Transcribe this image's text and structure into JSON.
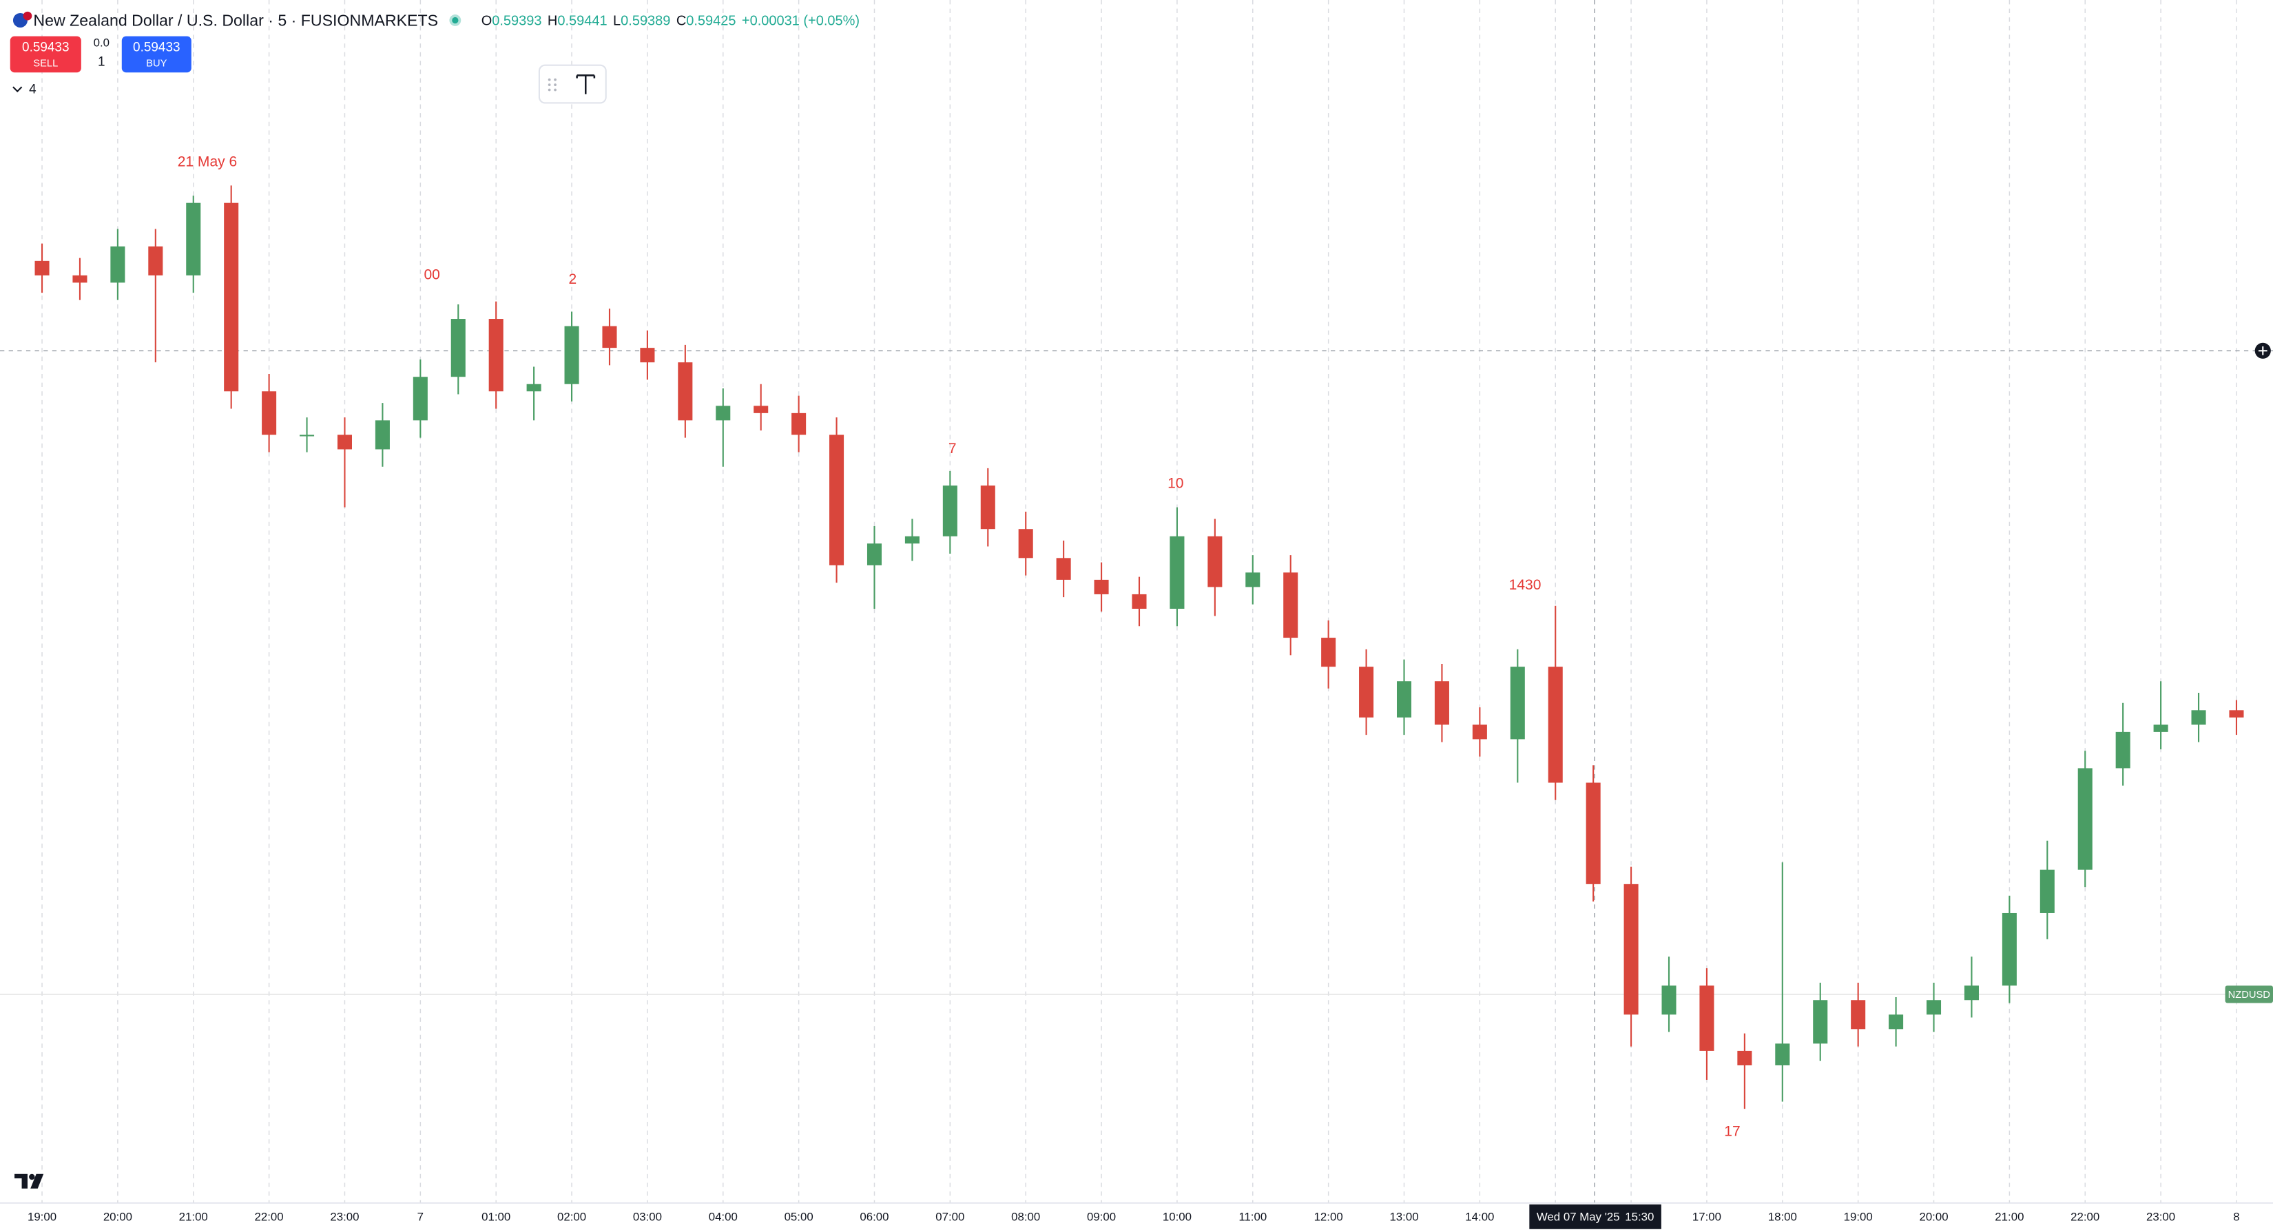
{
  "header": {
    "title": "New Zealand Dollar / U.S. Dollar · 5 · FUSIONMARKETS",
    "ohlc": [
      {
        "label": "O",
        "value": 0.59393
      },
      {
        "label": "H",
        "value": 0.59441
      },
      {
        "label": "L",
        "value": 0.59389
      },
      {
        "label": "C",
        "value": 0.59425
      }
    ],
    "change": "+0.00031 (+0.05%)",
    "sell_price": 0.59433,
    "sell_label": "SELL",
    "spread": "0.0",
    "quantity": 1,
    "buy_price": 0.59433,
    "buy_label": "BUY",
    "indicators_count": 4
  },
  "crosshair": {
    "date": "Wed 07 May '25",
    "time": "15:30"
  },
  "chart_data": {
    "type": "candlestick",
    "ylim": [
      0.5909,
      0.5992
    ],
    "xticks": [
      "19:00",
      "20:00",
      "21:00",
      "22:00",
      "23:00",
      "7",
      "01:00",
      "02:00",
      "03:00",
      "04:00",
      "05:00",
      "06:00",
      "07:00",
      "08:00",
      "09:00",
      "10:00",
      "11:00",
      "12:00",
      "13:00",
      "14:00",
      null,
      null,
      "17:00",
      "18:00",
      "19:00",
      "20:00",
      "21:00",
      "22:00",
      "23:00",
      "8"
    ],
    "grid": true,
    "annotations": [
      "21 May 6",
      "00",
      "2",
      "7",
      "10",
      "1430",
      "17"
    ],
    "annotation_color": "#e53935",
    "series": [
      {
        "name": "NZDUSD",
        "up_color": "#4a9d64",
        "down_color": "#d9463c",
        "open": [
          0.5974,
          0.5973,
          0.59725,
          0.5975,
          0.5973,
          0.5978,
          0.5965,
          0.5962,
          0.5962,
          0.5961,
          0.5963,
          0.5966,
          0.597,
          0.5965,
          0.59655,
          0.59695,
          0.5968,
          0.5967,
          0.5963,
          0.5964,
          0.59635,
          0.5962,
          0.5953,
          0.59545,
          0.5955,
          0.59585,
          0.59555,
          0.59535,
          0.5952,
          0.5951,
          0.595,
          0.5955,
          0.59515,
          0.59525,
          0.5948,
          0.5946,
          0.59425,
          0.5945,
          0.5942,
          0.5941,
          0.5946,
          0.5938,
          0.5931,
          0.5922,
          0.5924,
          0.59195,
          0.59185,
          0.592,
          0.5923,
          0.5921,
          0.5922,
          0.5923,
          0.5924,
          0.5929,
          0.5932,
          0.5939,
          0.59415,
          0.5942,
          0.5943
        ],
        "high": [
          0.59752,
          0.59742,
          0.59762,
          0.59762,
          0.59785,
          0.59792,
          0.59662,
          0.59632,
          0.59632,
          0.59642,
          0.59672,
          0.5971,
          0.59712,
          0.59667,
          0.59705,
          0.59707,
          0.59692,
          0.59682,
          0.59652,
          0.59655,
          0.59647,
          0.59632,
          0.59557,
          0.59562,
          0.59595,
          0.59597,
          0.59567,
          0.59547,
          0.59532,
          0.59522,
          0.5957,
          0.59562,
          0.59537,
          0.59537,
          0.59492,
          0.59472,
          0.59465,
          0.59462,
          0.59432,
          0.59472,
          0.59502,
          0.59392,
          0.59322,
          0.5926,
          0.59252,
          0.59207,
          0.59325,
          0.59242,
          0.59242,
          0.59232,
          0.59242,
          0.5926,
          0.59302,
          0.5934,
          0.59402,
          0.59435,
          0.5945,
          0.59442,
          0.59437
        ],
        "low": [
          0.59718,
          0.59713,
          0.59713,
          0.5967,
          0.59718,
          0.59638,
          0.59608,
          0.59608,
          0.5957,
          0.59598,
          0.59618,
          0.59648,
          0.59638,
          0.5963,
          0.59643,
          0.59668,
          0.59658,
          0.59618,
          0.59598,
          0.59623,
          0.59608,
          0.59518,
          0.595,
          0.59533,
          0.59538,
          0.59543,
          0.59523,
          0.59508,
          0.59498,
          0.59488,
          0.59488,
          0.59495,
          0.59503,
          0.59468,
          0.59445,
          0.59413,
          0.59413,
          0.59408,
          0.59398,
          0.5938,
          0.59368,
          0.59298,
          0.59198,
          0.59208,
          0.59175,
          0.59155,
          0.5916,
          0.59188,
          0.59198,
          0.59198,
          0.59208,
          0.59218,
          0.59228,
          0.59272,
          0.59308,
          0.59378,
          0.59403,
          0.59408,
          0.59413
        ],
        "close": [
          0.5973,
          0.59725,
          0.5975,
          0.5973,
          0.5978,
          0.5965,
          0.5962,
          0.5962,
          0.5961,
          0.5963,
          0.5966,
          0.597,
          0.5965,
          0.59655,
          0.59695,
          0.5968,
          0.5967,
          0.5963,
          0.5964,
          0.59635,
          0.5962,
          0.5953,
          0.59545,
          0.5955,
          0.59585,
          0.59555,
          0.59535,
          0.5952,
          0.5951,
          0.595,
          0.5955,
          0.59515,
          0.59525,
          0.5948,
          0.5946,
          0.59425,
          0.5945,
          0.5942,
          0.5941,
          0.5946,
          0.5938,
          0.5931,
          0.5922,
          0.5924,
          0.59195,
          0.59185,
          0.592,
          0.5923,
          0.5921,
          0.5922,
          0.5923,
          0.5924,
          0.5929,
          0.5932,
          0.5939,
          0.59415,
          0.5942,
          0.5943,
          0.59425
        ]
      }
    ]
  }
}
